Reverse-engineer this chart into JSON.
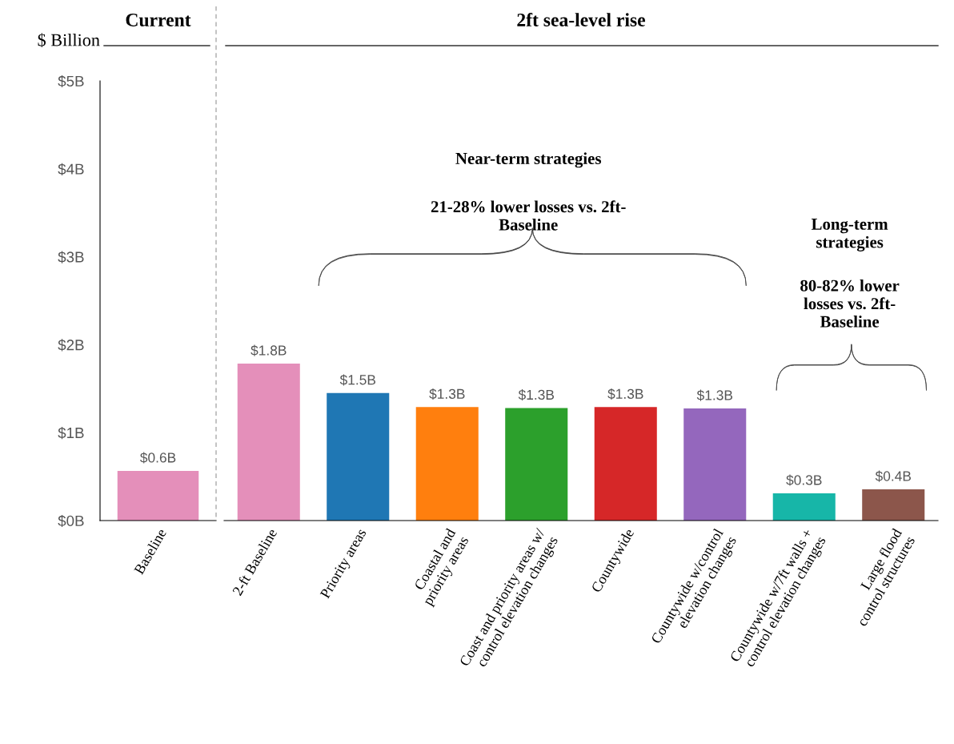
{
  "chart_data": [
    {
      "type": "bar",
      "title": "Current",
      "ylabel": "$ Billion",
      "categories": [
        "Baseline"
      ],
      "values": [
        0.565
      ],
      "colors": [
        "#e48fba"
      ],
      "value_labels": [
        "$0.6B"
      ],
      "ylim": [
        0,
        5
      ],
      "yticks": [
        {
          "value": 0,
          "label": "$0B"
        },
        {
          "value": 1,
          "label": "$1B"
        },
        {
          "value": 2,
          "label": "$2B"
        },
        {
          "value": 3,
          "label": "$3B"
        },
        {
          "value": 4,
          "label": "$4B"
        },
        {
          "value": 5,
          "label": "$5B"
        }
      ]
    },
    {
      "type": "bar",
      "title": "2ft sea-level rise",
      "categories": [
        "2-ft Baseline",
        "Priority areas",
        "Coastal and\npriority areas",
        "Coast and priority areas w/\ncontrol elevation changes",
        "Countywide",
        "Countywide w/control\nelevation changes",
        "Countywide w/7ft walls +\ncontrol elevation changes",
        "Large flood\ncontrol structures"
      ],
      "values": [
        1.785,
        1.45,
        1.29,
        1.28,
        1.29,
        1.275,
        0.31,
        0.355
      ],
      "colors": [
        "#e48fba",
        "#1f77b4",
        "#ff7f0e",
        "#2ca02c",
        "#d62728",
        "#9467bd",
        "#17b6a8",
        "#8c564b"
      ],
      "value_labels": [
        "$1.8B",
        "$1.5B",
        "$1.3B",
        "$1.3B",
        "$1.3B",
        "$1.3B",
        "$0.3B",
        "$0.4B"
      ],
      "ylim": [
        0,
        5
      ],
      "tick_labels": "x",
      "annotations": [
        "Near-term strategies",
        "21-28% lower losses vs. 2ft-\nBaseline",
        "Long-term\nstrategies",
        "80-82% lower\nlosses vs. 2ft-\nBaseline"
      ]
    }
  ]
}
